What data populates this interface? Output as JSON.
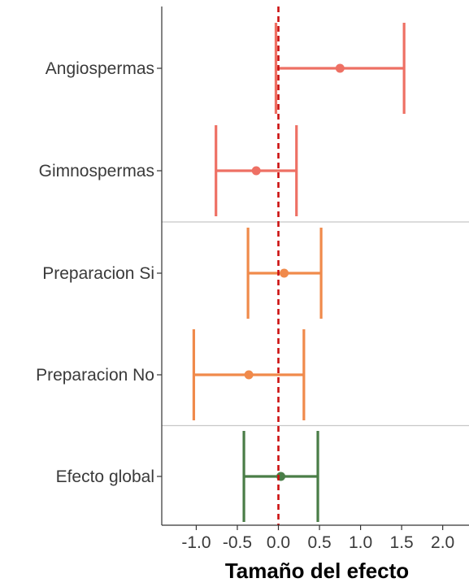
{
  "chart_data": {
    "type": "forest",
    "xlabel": "Tamaño del efecto",
    "ylabel": "",
    "title": "",
    "xlim": [
      -1.42,
      2.32
    ],
    "x_ticks": [
      -1.0,
      -0.5,
      0.0,
      0.5,
      1.0,
      1.5,
      2.0
    ],
    "x_tick_labels": [
      "-1.0",
      "-0.5",
      "0.0",
      "0.5",
      "1.0",
      "1.5",
      "2.0"
    ],
    "reference_line": {
      "x": 0,
      "style": "dashed",
      "color": "#cc1111"
    },
    "grid": false,
    "legend": "none",
    "rows": [
      {
        "label": "Angiospermas",
        "estimate": 0.75,
        "lower": -0.03,
        "upper": 1.53,
        "color": "#ee7064",
        "group": 1
      },
      {
        "label": "Gimnospermas",
        "estimate": -0.27,
        "lower": -0.76,
        "upper": 0.22,
        "color": "#ee7064",
        "group": 1
      },
      {
        "label": "Preparacion Si",
        "estimate": 0.07,
        "lower": -0.37,
        "upper": 0.52,
        "color": "#f08a4b",
        "group": 2
      },
      {
        "label": "Preparacion No",
        "estimate": -0.36,
        "lower": -1.03,
        "upper": 0.31,
        "color": "#f08a4b",
        "group": 2
      },
      {
        "label": "Efecto global",
        "estimate": 0.03,
        "lower": -0.42,
        "upper": 0.48,
        "color": "#4a7d47",
        "group": 3
      }
    ]
  }
}
